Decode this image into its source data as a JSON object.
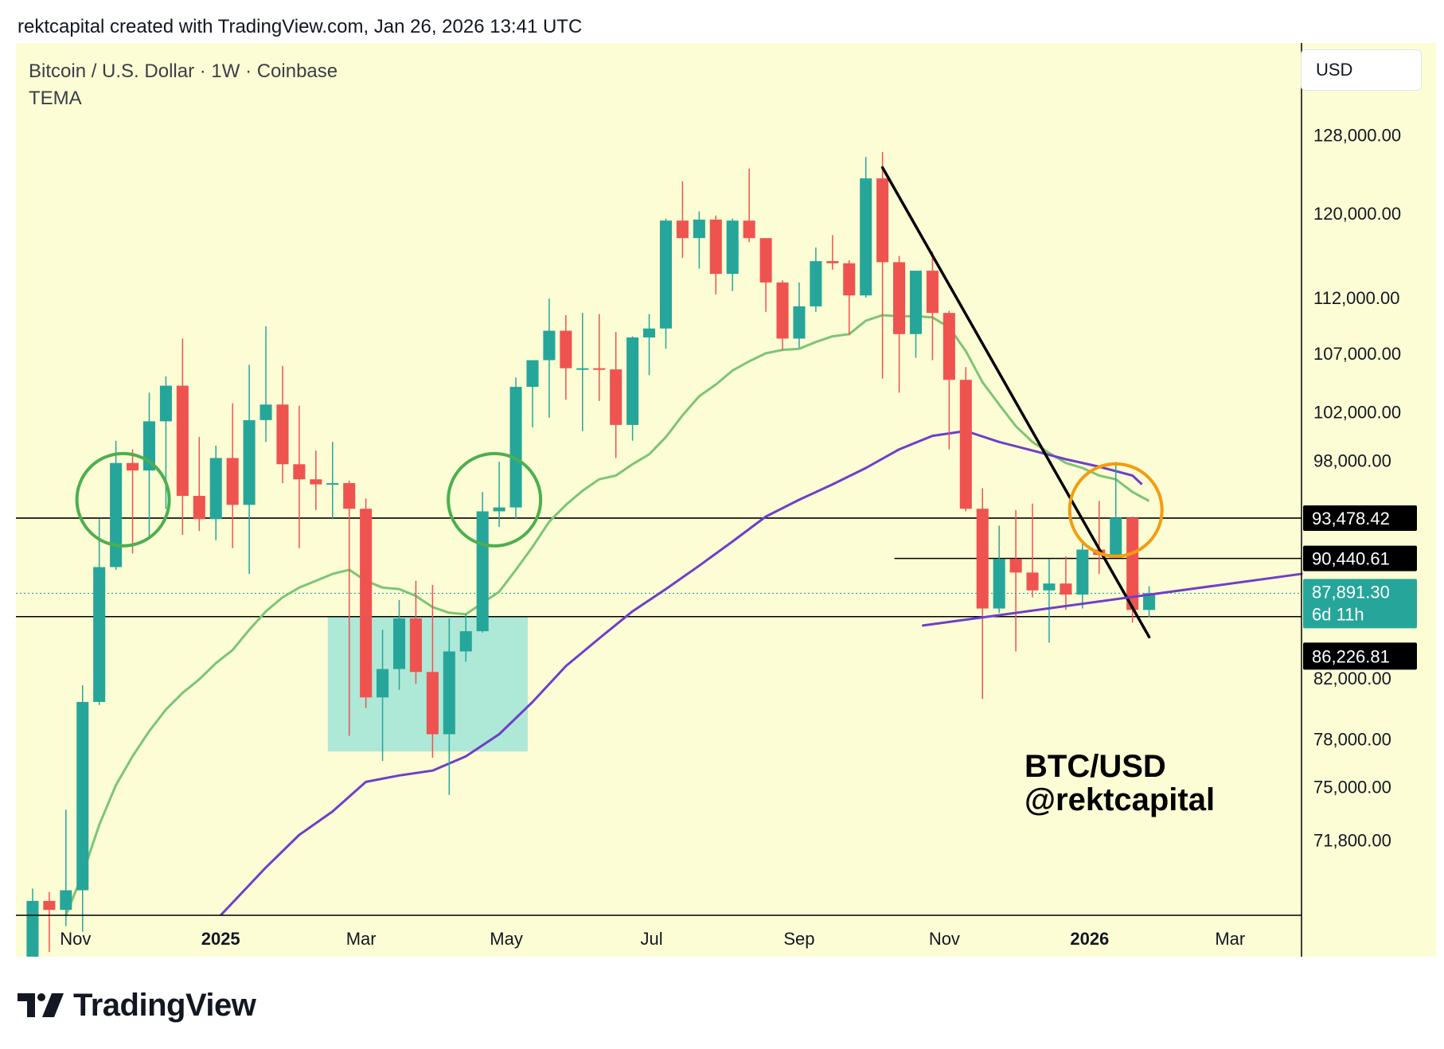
{
  "header": {
    "attribution": "rektcapital created with TradingView.com, Jan 26, 2026 13:41 UTC"
  },
  "legend": {
    "symbol_line": "Bitcoin / U.S. Dollar · 1W · Coinbase",
    "indicator": "TEMA"
  },
  "currency_button": "USD",
  "watermark": {
    "line1": "BTC/USD",
    "line2": "@rektcapital"
  },
  "footer": {
    "brand": "TradingView",
    "logo_icon": "tradingview-logo-icon"
  },
  "colors": {
    "background": "#fdfdd5",
    "up": "#26a69a",
    "down": "#ef5350",
    "ema_green": "#7cc576",
    "ema_purple": "#6f3fc7",
    "circle_green": "#4caf50",
    "circle_orange": "#f39c12",
    "zone": "#aee8d7"
  },
  "price_labels": {
    "level_1": "93,478.42",
    "level_2": "90,440.61",
    "current_price": "87,891.30",
    "countdown": "6d 11h",
    "level_3": "86,226.81"
  },
  "chart_data": {
    "type": "candlestick",
    "title": "Bitcoin / U.S. Dollar · 1W · Coinbase",
    "y_scale": "log",
    "ylim": [
      67500,
      138000
    ],
    "y_ticks": [
      {
        "value": 128000,
        "label": "128,000.00"
      },
      {
        "value": 120000,
        "label": "120,000.00"
      },
      {
        "value": 112000,
        "label": "112,000.00"
      },
      {
        "value": 107000,
        "label": "107,000.00"
      },
      {
        "value": 102000,
        "label": "102,000.00"
      },
      {
        "value": 98000,
        "label": "98,000.00"
      },
      {
        "value": 82000,
        "label": "82,000.00"
      },
      {
        "value": 78000,
        "label": "78,000.00"
      },
      {
        "value": 75000,
        "label": "75,000.00"
      },
      {
        "value": 71800,
        "label": "71,800.00"
      }
    ],
    "x_ticks": [
      {
        "date": "2024-11-01",
        "label": "Nov",
        "bold": false
      },
      {
        "date": "2025-01-01",
        "label": "2025",
        "bold": true
      },
      {
        "date": "2025-03-01",
        "label": "Mar",
        "bold": false
      },
      {
        "date": "2025-05-01",
        "label": "May",
        "bold": false
      },
      {
        "date": "2025-07-01",
        "label": "Jul",
        "bold": false
      },
      {
        "date": "2025-09-01",
        "label": "Sep",
        "bold": false
      },
      {
        "date": "2025-11-01",
        "label": "Nov",
        "bold": false
      },
      {
        "date": "2026-01-01",
        "label": "2026",
        "bold": true
      },
      {
        "date": "2026-03-01",
        "label": "Mar",
        "bold": false
      }
    ],
    "xlim": [
      "2024-10-07",
      "2026-03-31"
    ],
    "candles": [
      {
        "date": "2024-10-14",
        "o": 62300,
        "h": 69000,
        "l": 62000,
        "c": 68300
      },
      {
        "date": "2024-10-21",
        "o": 68300,
        "h": 68800,
        "l": 65500,
        "c": 67800
      },
      {
        "date": "2024-10-28",
        "o": 67800,
        "h": 73600,
        "l": 66900,
        "c": 68900
      },
      {
        "date": "2024-11-04",
        "o": 68900,
        "h": 81500,
        "l": 66600,
        "c": 80400
      },
      {
        "date": "2024-11-11",
        "o": 80400,
        "h": 93400,
        "l": 80200,
        "c": 89800
      },
      {
        "date": "2024-11-18",
        "o": 89800,
        "h": 99600,
        "l": 89600,
        "c": 97800
      },
      {
        "date": "2024-11-25",
        "o": 97800,
        "h": 98900,
        "l": 90800,
        "c": 97200
      },
      {
        "date": "2024-12-02",
        "o": 97200,
        "h": 103600,
        "l": 91900,
        "c": 101200
      },
      {
        "date": "2024-12-09",
        "o": 101200,
        "h": 105000,
        "l": 94200,
        "c": 104200
      },
      {
        "date": "2024-12-16",
        "o": 104200,
        "h": 108300,
        "l": 92200,
        "c": 95200
      },
      {
        "date": "2024-12-23",
        "o": 95200,
        "h": 99900,
        "l": 92500,
        "c": 93400
      },
      {
        "date": "2024-12-30",
        "o": 93400,
        "h": 99200,
        "l": 91800,
        "c": 98200
      },
      {
        "date": "2025-01-06",
        "o": 98200,
        "h": 102700,
        "l": 91200,
        "c": 94500
      },
      {
        "date": "2025-01-13",
        "o": 94500,
        "h": 106000,
        "l": 89300,
        "c": 101300
      },
      {
        "date": "2025-01-20",
        "o": 101300,
        "h": 109400,
        "l": 99500,
        "c": 102600
      },
      {
        "date": "2025-01-27",
        "o": 102600,
        "h": 105900,
        "l": 96200,
        "c": 97700
      },
      {
        "date": "2025-02-03",
        "o": 97700,
        "h": 102500,
        "l": 91200,
        "c": 96500
      },
      {
        "date": "2025-02-10",
        "o": 96500,
        "h": 98800,
        "l": 94100,
        "c": 96100
      },
      {
        "date": "2025-02-17",
        "o": 96100,
        "h": 99500,
        "l": 93400,
        "c": 96200
      },
      {
        "date": "2025-02-24",
        "o": 96200,
        "h": 96400,
        "l": 78200,
        "c": 94200
      },
      {
        "date": "2025-03-03",
        "o": 94200,
        "h": 95000,
        "l": 80000,
        "c": 80700
      },
      {
        "date": "2025-03-10",
        "o": 80700,
        "h": 85300,
        "l": 76600,
        "c": 82600
      },
      {
        "date": "2025-03-17",
        "o": 82600,
        "h": 87400,
        "l": 81200,
        "c": 86100
      },
      {
        "date": "2025-03-24",
        "o": 86100,
        "h": 88800,
        "l": 81600,
        "c": 82400
      },
      {
        "date": "2025-03-31",
        "o": 82400,
        "h": 88500,
        "l": 76800,
        "c": 78300
      },
      {
        "date": "2025-04-07",
        "o": 78300,
        "h": 86100,
        "l": 74500,
        "c": 83800
      },
      {
        "date": "2025-04-14",
        "o": 83800,
        "h": 86400,
        "l": 83100,
        "c": 85200
      },
      {
        "date": "2025-04-21",
        "o": 85200,
        "h": 95500,
        "l": 85100,
        "c": 94000
      },
      {
        "date": "2025-04-28",
        "o": 94000,
        "h": 97900,
        "l": 92800,
        "c": 94300
      },
      {
        "date": "2025-05-05",
        "o": 94300,
        "h": 104900,
        "l": 93400,
        "c": 104100
      },
      {
        "date": "2025-05-12",
        "o": 104100,
        "h": 105800,
        "l": 100700,
        "c": 106400
      },
      {
        "date": "2025-05-19",
        "o": 106400,
        "h": 111900,
        "l": 101500,
        "c": 109000
      },
      {
        "date": "2025-05-26",
        "o": 109000,
        "h": 110400,
        "l": 103000,
        "c": 105700
      },
      {
        "date": "2025-06-02",
        "o": 105700,
        "h": 110600,
        "l": 100400,
        "c": 105700
      },
      {
        "date": "2025-06-09",
        "o": 105700,
        "h": 110500,
        "l": 102900,
        "c": 105600
      },
      {
        "date": "2025-06-16",
        "o": 105600,
        "h": 108900,
        "l": 98200,
        "c": 100900
      },
      {
        "date": "2025-06-23",
        "o": 100900,
        "h": 108500,
        "l": 99600,
        "c": 108400
      },
      {
        "date": "2025-06-30",
        "o": 108400,
        "h": 110500,
        "l": 105100,
        "c": 109200
      },
      {
        "date": "2025-07-07",
        "o": 109200,
        "h": 119500,
        "l": 107400,
        "c": 119300
      },
      {
        "date": "2025-07-14",
        "o": 119300,
        "h": 123200,
        "l": 115700,
        "c": 117600
      },
      {
        "date": "2025-07-21",
        "o": 117600,
        "h": 120200,
        "l": 114700,
        "c": 119400
      },
      {
        "date": "2025-07-28",
        "o": 119400,
        "h": 119800,
        "l": 112300,
        "c": 114200
      },
      {
        "date": "2025-08-04",
        "o": 114200,
        "h": 119500,
        "l": 112600,
        "c": 119300
      },
      {
        "date": "2025-08-11",
        "o": 119300,
        "h": 124500,
        "l": 117200,
        "c": 117600
      },
      {
        "date": "2025-08-18",
        "o": 117600,
        "h": 117600,
        "l": 110700,
        "c": 113400
      },
      {
        "date": "2025-08-25",
        "o": 113400,
        "h": 113600,
        "l": 107300,
        "c": 108300
      },
      {
        "date": "2025-09-01",
        "o": 108300,
        "h": 113400,
        "l": 107500,
        "c": 111200
      },
      {
        "date": "2025-09-08",
        "o": 111200,
        "h": 116700,
        "l": 110700,
        "c": 115400
      },
      {
        "date": "2025-09-15",
        "o": 115400,
        "h": 117900,
        "l": 114600,
        "c": 115200
      },
      {
        "date": "2025-09-22",
        "o": 115200,
        "h": 115500,
        "l": 108600,
        "c": 112200
      },
      {
        "date": "2025-09-29",
        "o": 112200,
        "h": 125700,
        "l": 112000,
        "c": 123500
      },
      {
        "date": "2025-10-06",
        "o": 123500,
        "h": 126200,
        "l": 104800,
        "c": 115300
      },
      {
        "date": "2025-10-13",
        "o": 115300,
        "h": 115900,
        "l": 103600,
        "c": 108700
      },
      {
        "date": "2025-10-20",
        "o": 108700,
        "h": 113900,
        "l": 106600,
        "c": 114500
      },
      {
        "date": "2025-10-27",
        "o": 114500,
        "h": 116300,
        "l": 106400,
        "c": 110600
      },
      {
        "date": "2025-11-03",
        "o": 110600,
        "h": 110800,
        "l": 98900,
        "c": 104700
      },
      {
        "date": "2025-11-10",
        "o": 104700,
        "h": 105800,
        "l": 94000,
        "c": 94200
      },
      {
        "date": "2025-11-17",
        "o": 94200,
        "h": 95800,
        "l": 80600,
        "c": 86800
      },
      {
        "date": "2025-11-24",
        "o": 86800,
        "h": 92900,
        "l": 86500,
        "c": 90400
      },
      {
        "date": "2025-12-01",
        "o": 90400,
        "h": 94100,
        "l": 83800,
        "c": 89400
      },
      {
        "date": "2025-12-08",
        "o": 89400,
        "h": 94600,
        "l": 87600,
        "c": 88100
      },
      {
        "date": "2025-12-15",
        "o": 88100,
        "h": 90400,
        "l": 84400,
        "c": 88600
      },
      {
        "date": "2025-12-22",
        "o": 88600,
        "h": 90600,
        "l": 86700,
        "c": 87800
      },
      {
        "date": "2025-12-29",
        "o": 87800,
        "h": 91700,
        "l": 86800,
        "c": 91100
      },
      {
        "date": "2026-01-05",
        "o": 91100,
        "h": 94800,
        "l": 89300,
        "c": 90700
      },
      {
        "date": "2026-01-12",
        "o": 90700,
        "h": 97900,
        "l": 90600,
        "c": 93500
      },
      {
        "date": "2026-01-19",
        "o": 93500,
        "h": 93600,
        "l": 85800,
        "c": 86700
      },
      {
        "date": "2026-01-26",
        "o": 86700,
        "h": 88400,
        "l": 86200,
        "c": 87900
      }
    ],
    "ema_green": [
      [
        "2024-10-28",
        67500
      ],
      [
        "2024-11-04",
        69800
      ],
      [
        "2024-11-11",
        72700
      ],
      [
        "2024-11-18",
        75100
      ],
      [
        "2024-11-25",
        76900
      ],
      [
        "2024-12-02",
        78500
      ],
      [
        "2024-12-09",
        79900
      ],
      [
        "2024-12-16",
        81000
      ],
      [
        "2024-12-23",
        81900
      ],
      [
        "2024-12-30",
        83000
      ],
      [
        "2025-01-06",
        83900
      ],
      [
        "2025-01-13",
        85300
      ],
      [
        "2025-01-20",
        86600
      ],
      [
        "2025-01-27",
        87600
      ],
      [
        "2025-02-03",
        88300
      ],
      [
        "2025-02-10",
        88800
      ],
      [
        "2025-02-17",
        89300
      ],
      [
        "2025-02-24",
        89600
      ],
      [
        "2025-03-03",
        88800
      ],
      [
        "2025-03-10",
        88300
      ],
      [
        "2025-03-17",
        88200
      ],
      [
        "2025-03-24",
        87700
      ],
      [
        "2025-03-31",
        86900
      ],
      [
        "2025-04-07",
        86500
      ],
      [
        "2025-04-14",
        86400
      ],
      [
        "2025-04-21",
        87200
      ],
      [
        "2025-04-28",
        88000
      ],
      [
        "2025-05-05",
        89600
      ],
      [
        "2025-05-12",
        91300
      ],
      [
        "2025-05-19",
        93200
      ],
      [
        "2025-05-26",
        94500
      ],
      [
        "2025-06-02",
        95600
      ],
      [
        "2025-06-09",
        96500
      ],
      [
        "2025-06-16",
        96800
      ],
      [
        "2025-06-23",
        97700
      ],
      [
        "2025-06-30",
        98500
      ],
      [
        "2025-07-07",
        99900
      ],
      [
        "2025-07-14",
        101700
      ],
      [
        "2025-07-21",
        103300
      ],
      [
        "2025-07-28",
        104300
      ],
      [
        "2025-08-04",
        105500
      ],
      [
        "2025-08-11",
        106300
      ],
      [
        "2025-08-18",
        107000
      ],
      [
        "2025-08-25",
        107300
      ],
      [
        "2025-09-01",
        107400
      ],
      [
        "2025-09-08",
        108000
      ],
      [
        "2025-09-15",
        108500
      ],
      [
        "2025-09-22",
        108700
      ],
      [
        "2025-09-29",
        109900
      ],
      [
        "2025-10-06",
        110400
      ],
      [
        "2025-10-13",
        110300
      ],
      [
        "2025-10-20",
        110300
      ],
      [
        "2025-10-27",
        110200
      ],
      [
        "2025-11-03",
        109300
      ],
      [
        "2025-11-10",
        107200
      ],
      [
        "2025-11-17",
        104500
      ],
      [
        "2025-11-24",
        102600
      ],
      [
        "2025-12-01",
        100800
      ],
      [
        "2025-12-08",
        99500
      ],
      [
        "2025-12-15",
        98600
      ],
      [
        "2025-12-22",
        97800
      ],
      [
        "2025-12-29",
        97400
      ],
      [
        "2026-01-05",
        96800
      ],
      [
        "2026-01-12",
        96500
      ],
      [
        "2026-01-19",
        95500
      ],
      [
        "2026-01-26",
        94800
      ]
    ],
    "ema_purple": [
      [
        "2025-01-01",
        67500
      ],
      [
        "2025-01-20",
        70200
      ],
      [
        "2025-02-03",
        72100
      ],
      [
        "2025-02-17",
        73500
      ],
      [
        "2025-03-03",
        75300
      ],
      [
        "2025-03-17",
        75700
      ],
      [
        "2025-03-31",
        76000
      ],
      [
        "2025-04-14",
        76900
      ],
      [
        "2025-04-28",
        78300
      ],
      [
        "2025-05-12",
        80400
      ],
      [
        "2025-05-26",
        82800
      ],
      [
        "2025-06-09",
        84700
      ],
      [
        "2025-06-23",
        86600
      ],
      [
        "2025-07-07",
        88200
      ],
      [
        "2025-07-21",
        89900
      ],
      [
        "2025-08-04",
        91700
      ],
      [
        "2025-08-18",
        93600
      ],
      [
        "2025-09-01",
        94900
      ],
      [
        "2025-09-15",
        96100
      ],
      [
        "2025-09-29",
        97400
      ],
      [
        "2025-10-13",
        98900
      ],
      [
        "2025-10-27",
        100000
      ],
      [
        "2025-11-10",
        100400
      ],
      [
        "2025-11-24",
        99500
      ],
      [
        "2025-12-08",
        98800
      ],
      [
        "2025-12-22",
        98100
      ],
      [
        "2026-01-05",
        97500
      ],
      [
        "2026-01-19",
        96800
      ],
      [
        "2026-01-23",
        96100
      ]
    ],
    "horizontal_lines": [
      {
        "value": 93478.42,
        "from": "2024-10-07",
        "to": "2026-03-31",
        "label": "93,478.42"
      },
      {
        "value": 90440.61,
        "from": "2025-10-11",
        "to": "2026-03-31",
        "label": "90,440.61"
      },
      {
        "value": 86226.81,
        "from": "2024-10-07",
        "to": "2026-03-31",
        "label": "86,226.81"
      }
    ],
    "current_price": {
      "value": 87891.3,
      "label": "87,891.30",
      "countdown": "6d 11h"
    },
    "trendlines": [
      {
        "name": "descending",
        "color": "#000000",
        "from": [
          "2025-10-06",
          124600
        ],
        "to": [
          "2026-01-26",
          84800
        ]
      },
      {
        "name": "ascending",
        "color": "#6f3fc7",
        "from": [
          "2025-10-23",
          85600
        ],
        "to": [
          "2026-03-31",
          89300
        ]
      }
    ],
    "zones": [
      {
        "from": "2025-02-15",
        "to": "2025-05-10",
        "top": 86226.81,
        "bottom": 77200,
        "color": "#aee8d7"
      }
    ],
    "circles": [
      {
        "center": [
          "2024-11-21",
          94900
        ],
        "color": "#4caf50"
      },
      {
        "center": [
          "2025-04-26",
          94900
        ],
        "color": "#4caf50"
      },
      {
        "center": [
          "2026-01-12",
          94100
        ],
        "color": "#f39c12"
      }
    ]
  }
}
